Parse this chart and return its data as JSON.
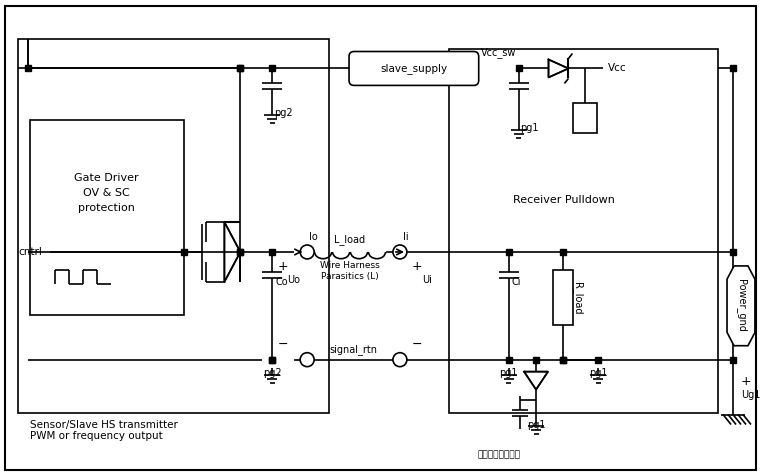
{
  "bg_color": "#ffffff",
  "gate_driver_text": [
    "Gate Driver",
    "OV & SC",
    "protection"
  ],
  "cntrl_label": "cntrl",
  "slave_supply_label": "slave_supply",
  "vcc_sw_label": "Vcc_sw",
  "vcc_label": "Vcc",
  "receiver_pulldown_label": "Receiver Pulldown",
  "lo_label": "Io",
  "li_label": "Ii",
  "l_load_label": "L_load",
  "wire_harness_1": "Wire Harness",
  "wire_harness_2": "Parasitics (L)",
  "uo_label": "Uo",
  "ui_label": "Ui",
  "signal_rtn_label": "signal_rtn",
  "co_label": "Co",
  "ci_label": "Ci",
  "r_load_label": "R_load",
  "power_gnd_label": "Power_gnd",
  "ug1_label": "Ug1",
  "pg1_label": "pg1",
  "pg2_label": "pg2",
  "bottom_text_1": "Sensor/Slave HS transmitter",
  "bottom_text_2": "PWM or frequency output",
  "watermark": "汉车电子硬件设计"
}
